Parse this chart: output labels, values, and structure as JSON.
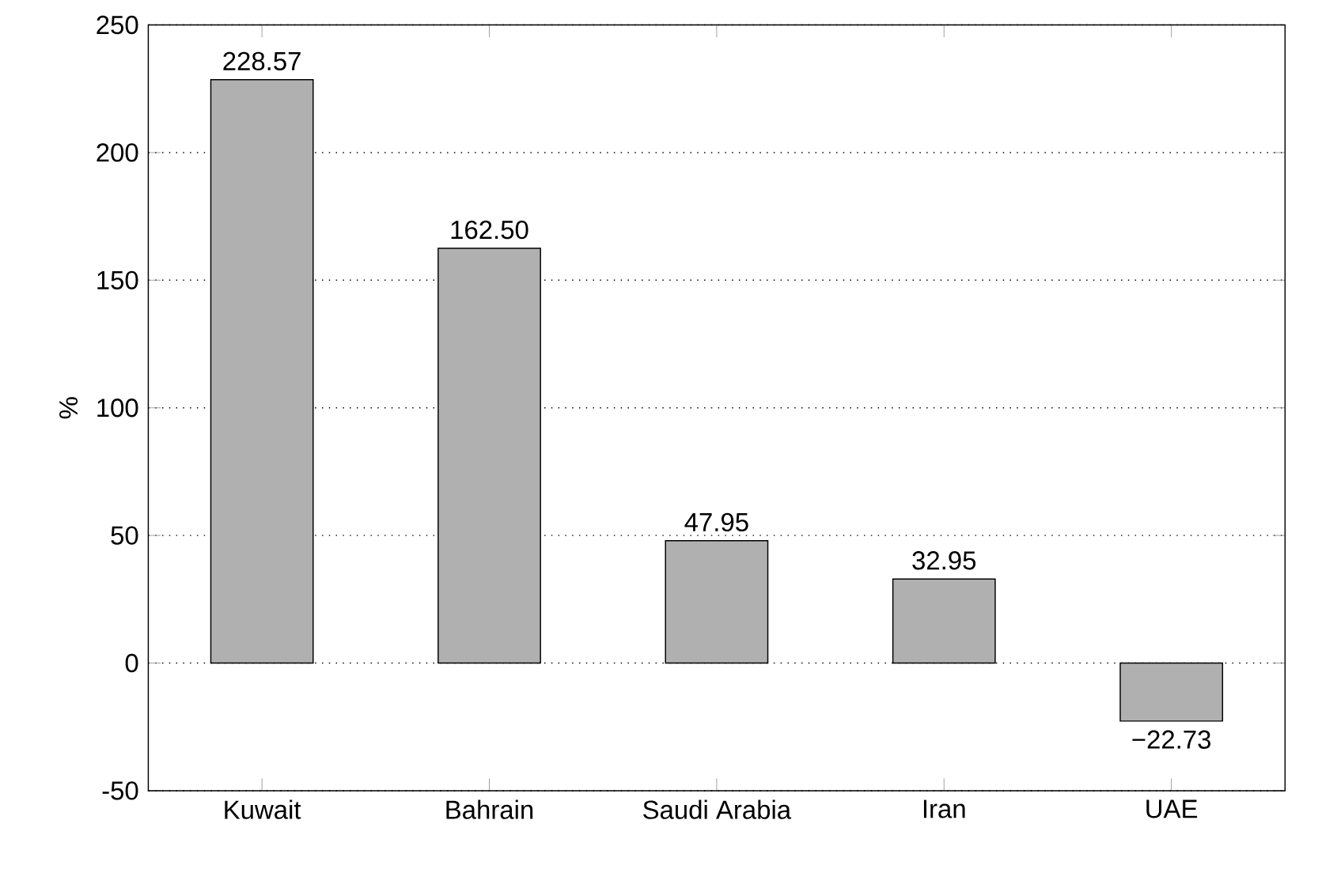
{
  "chart_data": {
    "type": "bar",
    "ylabel": "%",
    "categories": [
      "Kuwait",
      "Bahrain",
      "Saudi Arabia",
      "Iran",
      "UAE"
    ],
    "values": [
      228.57,
      162.5,
      47.95,
      32.95,
      -22.73
    ],
    "value_labels": [
      "228.57",
      "162.50",
      "47.95",
      "32.95",
      "−22.73"
    ],
    "color": "#b0b0b0",
    "ylim": [
      -50,
      250
    ],
    "yticks": [
      -50,
      0,
      50,
      100,
      150,
      200,
      250
    ],
    "grid": "y"
  }
}
